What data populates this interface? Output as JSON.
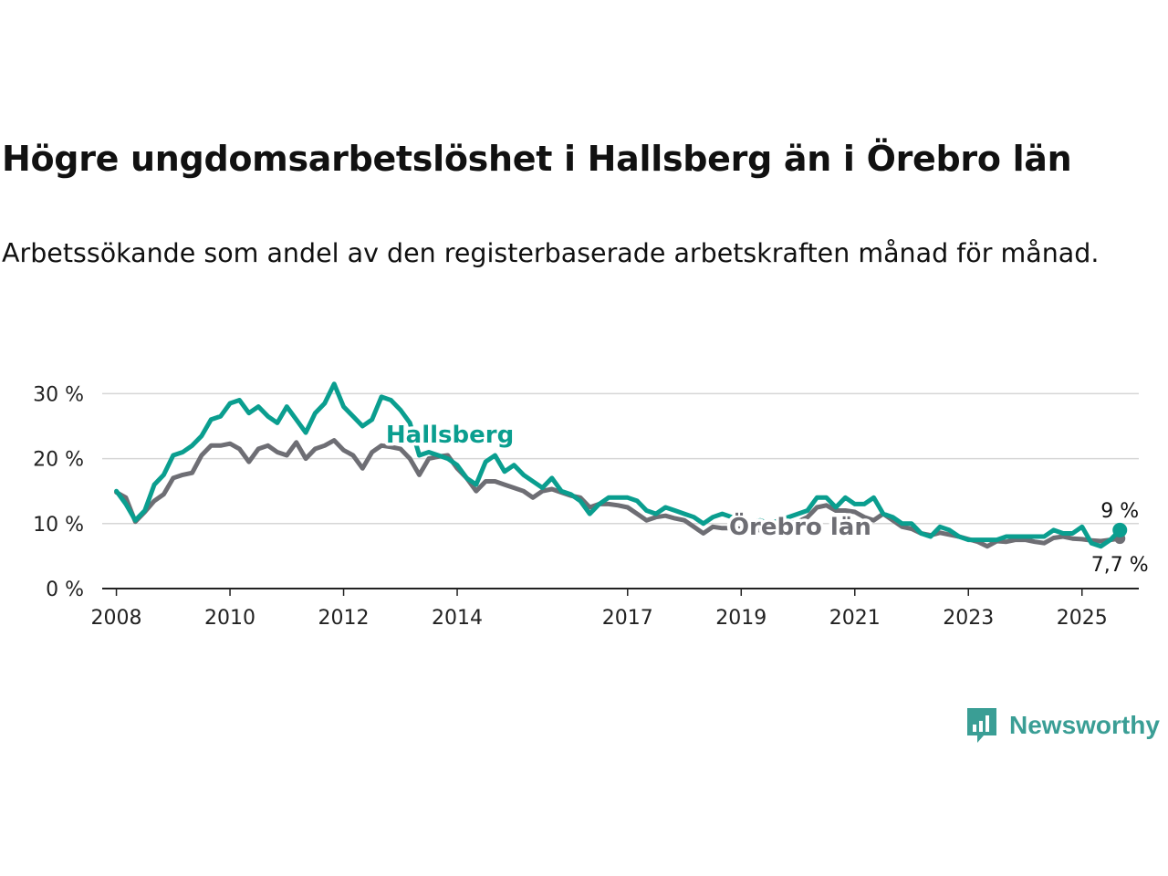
{
  "title": "Högre ungdomsarbetslöshet i Hallsberg än i Örebro län",
  "subtitle": "Arbetssökande som andel av den registerbaserade arbetskraften månad för månad.",
  "brand": {
    "name": "Newsworthy",
    "icon": "newsworthy-logo-icon",
    "color": "#3a9e95"
  },
  "colors": {
    "Hallsberg": "#0a9e8f",
    "Örebro län": "#6e6e74",
    "grid": "#d6d6d6",
    "axis": "#222222"
  },
  "chart_data": {
    "type": "line",
    "xlabel": "",
    "ylabel": "",
    "x_ticks": [
      "2008",
      "2010",
      "2012",
      "2014",
      "2017",
      "2019",
      "2021",
      "2023",
      "2025"
    ],
    "y_ticks": [
      "0 %",
      "10 %",
      "20 %",
      "30 %"
    ],
    "ylim": [
      0,
      33
    ],
    "xlim": [
      "2007-10",
      "2026-01"
    ],
    "grid": true,
    "legend": "inline labels",
    "end_labels": {
      "Hallsberg": "9 %",
      "Örebro län": "7,7 %"
    },
    "series": [
      {
        "name": "Hallsberg",
        "color": "#0a9e8f",
        "points": [
          [
            "2008-01",
            15
          ],
          [
            "2008-03",
            13
          ],
          [
            "2008-05",
            10.5
          ],
          [
            "2008-07",
            12
          ],
          [
            "2008-09",
            16
          ],
          [
            "2008-11",
            17.5
          ],
          [
            "2009-01",
            20.5
          ],
          [
            "2009-03",
            21
          ],
          [
            "2009-05",
            22
          ],
          [
            "2009-07",
            23.5
          ],
          [
            "2009-09",
            26
          ],
          [
            "2009-11",
            26.5
          ],
          [
            "2010-01",
            28.5
          ],
          [
            "2010-03",
            29
          ],
          [
            "2010-05",
            27
          ],
          [
            "2010-07",
            28
          ],
          [
            "2010-09",
            26.5
          ],
          [
            "2010-11",
            25.5
          ],
          [
            "2011-01",
            28
          ],
          [
            "2011-03",
            26
          ],
          [
            "2011-05",
            24
          ],
          [
            "2011-07",
            27
          ],
          [
            "2011-09",
            28.5
          ],
          [
            "2011-11",
            31.5
          ],
          [
            "2012-01",
            28
          ],
          [
            "2012-03",
            26.5
          ],
          [
            "2012-05",
            25
          ],
          [
            "2012-07",
            26
          ],
          [
            "2012-09",
            29.5
          ],
          [
            "2012-11",
            29
          ],
          [
            "2013-01",
            27.5
          ],
          [
            "2013-03",
            25.5
          ],
          [
            "2013-05",
            20.5
          ],
          [
            "2013-07",
            21
          ],
          [
            "2013-09",
            20.5
          ],
          [
            "2013-11",
            20
          ],
          [
            "2014-01",
            19
          ],
          [
            "2014-03",
            17
          ],
          [
            "2014-05",
            16
          ],
          [
            "2014-07",
            19.5
          ],
          [
            "2014-09",
            20.5
          ],
          [
            "2014-11",
            18
          ],
          [
            "2015-01",
            19
          ],
          [
            "2015-03",
            17.5
          ],
          [
            "2015-05",
            16.5
          ],
          [
            "2015-07",
            15.5
          ],
          [
            "2015-09",
            17
          ],
          [
            "2015-11",
            15
          ],
          [
            "2016-01",
            14.5
          ],
          [
            "2016-03",
            13.5
          ],
          [
            "2016-05",
            11.5
          ],
          [
            "2016-07",
            13
          ],
          [
            "2016-09",
            14
          ],
          [
            "2016-11",
            14
          ],
          [
            "2017-01",
            14
          ],
          [
            "2017-03",
            13.5
          ],
          [
            "2017-05",
            12
          ],
          [
            "2017-07",
            11.5
          ],
          [
            "2017-09",
            12.5
          ],
          [
            "2017-11",
            12
          ],
          [
            "2018-01",
            11.5
          ],
          [
            "2018-03",
            11
          ],
          [
            "2018-05",
            10
          ],
          [
            "2018-07",
            11
          ],
          [
            "2018-09",
            11.5
          ],
          [
            "2018-11",
            11
          ],
          [
            "2019-01",
            10.5
          ],
          [
            "2019-03",
            10
          ],
          [
            "2019-05",
            10.5
          ],
          [
            "2019-07",
            10
          ],
          [
            "2019-09",
            10.5
          ],
          [
            "2019-11",
            11
          ],
          [
            "2020-01",
            11.5
          ],
          [
            "2020-03",
            12
          ],
          [
            "2020-05",
            14
          ],
          [
            "2020-07",
            14
          ],
          [
            "2020-09",
            12.5
          ],
          [
            "2020-11",
            14
          ],
          [
            "2021-01",
            13
          ],
          [
            "2021-03",
            13
          ],
          [
            "2021-05",
            14
          ],
          [
            "2021-07",
            11.5
          ],
          [
            "2021-09",
            11
          ],
          [
            "2021-11",
            10
          ],
          [
            "2022-01",
            10
          ],
          [
            "2022-03",
            8.5
          ],
          [
            "2022-05",
            8
          ],
          [
            "2022-07",
            9.5
          ],
          [
            "2022-09",
            9
          ],
          [
            "2022-11",
            8
          ],
          [
            "2023-01",
            7.5
          ],
          [
            "2023-03",
            7.5
          ],
          [
            "2023-05",
            7.5
          ],
          [
            "2023-07",
            7.5
          ],
          [
            "2023-09",
            8
          ],
          [
            "2023-11",
            8
          ],
          [
            "2024-01",
            8
          ],
          [
            "2024-03",
            8
          ],
          [
            "2024-05",
            8
          ],
          [
            "2024-07",
            9
          ],
          [
            "2024-09",
            8.5
          ],
          [
            "2024-11",
            8.5
          ],
          [
            "2025-01",
            9.5
          ],
          [
            "2025-03",
            7
          ],
          [
            "2025-05",
            6.5
          ],
          [
            "2025-07",
            7.5
          ],
          [
            "2025-09",
            9
          ]
        ]
      },
      {
        "name": "Örebro län",
        "color": "#6e6e74",
        "points": [
          [
            "2008-01",
            14.8
          ],
          [
            "2008-03",
            14
          ],
          [
            "2008-05",
            10.3
          ],
          [
            "2008-07",
            11.8
          ],
          [
            "2008-09",
            13.5
          ],
          [
            "2008-11",
            14.5
          ],
          [
            "2009-01",
            17
          ],
          [
            "2009-03",
            17.5
          ],
          [
            "2009-05",
            17.8
          ],
          [
            "2009-07",
            20.5
          ],
          [
            "2009-09",
            22
          ],
          [
            "2009-11",
            22
          ],
          [
            "2010-01",
            22.3
          ],
          [
            "2010-03",
            21.5
          ],
          [
            "2010-05",
            19.5
          ],
          [
            "2010-07",
            21.5
          ],
          [
            "2010-09",
            22
          ],
          [
            "2010-11",
            21
          ],
          [
            "2011-01",
            20.5
          ],
          [
            "2011-03",
            22.5
          ],
          [
            "2011-05",
            20
          ],
          [
            "2011-07",
            21.5
          ],
          [
            "2011-09",
            22
          ],
          [
            "2011-11",
            22.8
          ],
          [
            "2012-01",
            21.3
          ],
          [
            "2012-03",
            20.5
          ],
          [
            "2012-05",
            18.5
          ],
          [
            "2012-07",
            21
          ],
          [
            "2012-09",
            22
          ],
          [
            "2012-11",
            21.8
          ],
          [
            "2013-01",
            21.5
          ],
          [
            "2013-03",
            20
          ],
          [
            "2013-05",
            17.5
          ],
          [
            "2013-07",
            20
          ],
          [
            "2013-09",
            20.3
          ],
          [
            "2013-11",
            20.5
          ],
          [
            "2014-01",
            18.5
          ],
          [
            "2014-03",
            17
          ],
          [
            "2014-05",
            15
          ],
          [
            "2014-07",
            16.5
          ],
          [
            "2014-09",
            16.5
          ],
          [
            "2014-11",
            16
          ],
          [
            "2015-01",
            15.5
          ],
          [
            "2015-03",
            15
          ],
          [
            "2015-05",
            14
          ],
          [
            "2015-07",
            15
          ],
          [
            "2015-09",
            15.3
          ],
          [
            "2015-11",
            14.8
          ],
          [
            "2016-01",
            14.3
          ],
          [
            "2016-03",
            14
          ],
          [
            "2016-05",
            12.5
          ],
          [
            "2016-07",
            13
          ],
          [
            "2016-09",
            13
          ],
          [
            "2016-11",
            12.8
          ],
          [
            "2017-01",
            12.5
          ],
          [
            "2017-03",
            11.5
          ],
          [
            "2017-05",
            10.5
          ],
          [
            "2017-07",
            11
          ],
          [
            "2017-09",
            11.2
          ],
          [
            "2017-11",
            10.8
          ],
          [
            "2018-01",
            10.5
          ],
          [
            "2018-03",
            9.5
          ],
          [
            "2018-05",
            8.5
          ],
          [
            "2018-07",
            9.5
          ],
          [
            "2018-09",
            9.3
          ],
          [
            "2018-11",
            9.3
          ],
          [
            "2019-01",
            9.2
          ],
          [
            "2019-03",
            9
          ],
          [
            "2019-05",
            9
          ],
          [
            "2019-07",
            9.5
          ],
          [
            "2019-09",
            9.8
          ],
          [
            "2019-11",
            10
          ],
          [
            "2020-01",
            10.3
          ],
          [
            "2020-03",
            11
          ],
          [
            "2020-05",
            12.5
          ],
          [
            "2020-07",
            12.8
          ],
          [
            "2020-09",
            12
          ],
          [
            "2020-11",
            12
          ],
          [
            "2021-01",
            11.8
          ],
          [
            "2021-03",
            11
          ],
          [
            "2021-05",
            10.5
          ],
          [
            "2021-07",
            11.5
          ],
          [
            "2021-09",
            10.5
          ],
          [
            "2021-11",
            9.5
          ],
          [
            "2022-01",
            9.2
          ],
          [
            "2022-03",
            8.5
          ],
          [
            "2022-05",
            8.2
          ],
          [
            "2022-07",
            8.6
          ],
          [
            "2022-09",
            8.3
          ],
          [
            "2022-11",
            8
          ],
          [
            "2023-01",
            7.6
          ],
          [
            "2023-03",
            7.2
          ],
          [
            "2023-05",
            6.5
          ],
          [
            "2023-07",
            7.3
          ],
          [
            "2023-09",
            7.2
          ],
          [
            "2023-11",
            7.5
          ],
          [
            "2024-01",
            7.5
          ],
          [
            "2024-03",
            7.2
          ],
          [
            "2024-05",
            7
          ],
          [
            "2024-07",
            7.8
          ],
          [
            "2024-09",
            8
          ],
          [
            "2024-11",
            7.7
          ],
          [
            "2025-01",
            7.6
          ],
          [
            "2025-03",
            7.4
          ],
          [
            "2025-05",
            7.3
          ],
          [
            "2025-07",
            7.5
          ],
          [
            "2025-09",
            7.7
          ]
        ]
      }
    ],
    "annotations": [
      {
        "label": "Hallsberg",
        "series": "Hallsberg",
        "at": "2014-01",
        "value": 22.5
      },
      {
        "label": "Örebro län",
        "series": "Örebro län",
        "at": "2020-03",
        "value": 10
      }
    ]
  }
}
